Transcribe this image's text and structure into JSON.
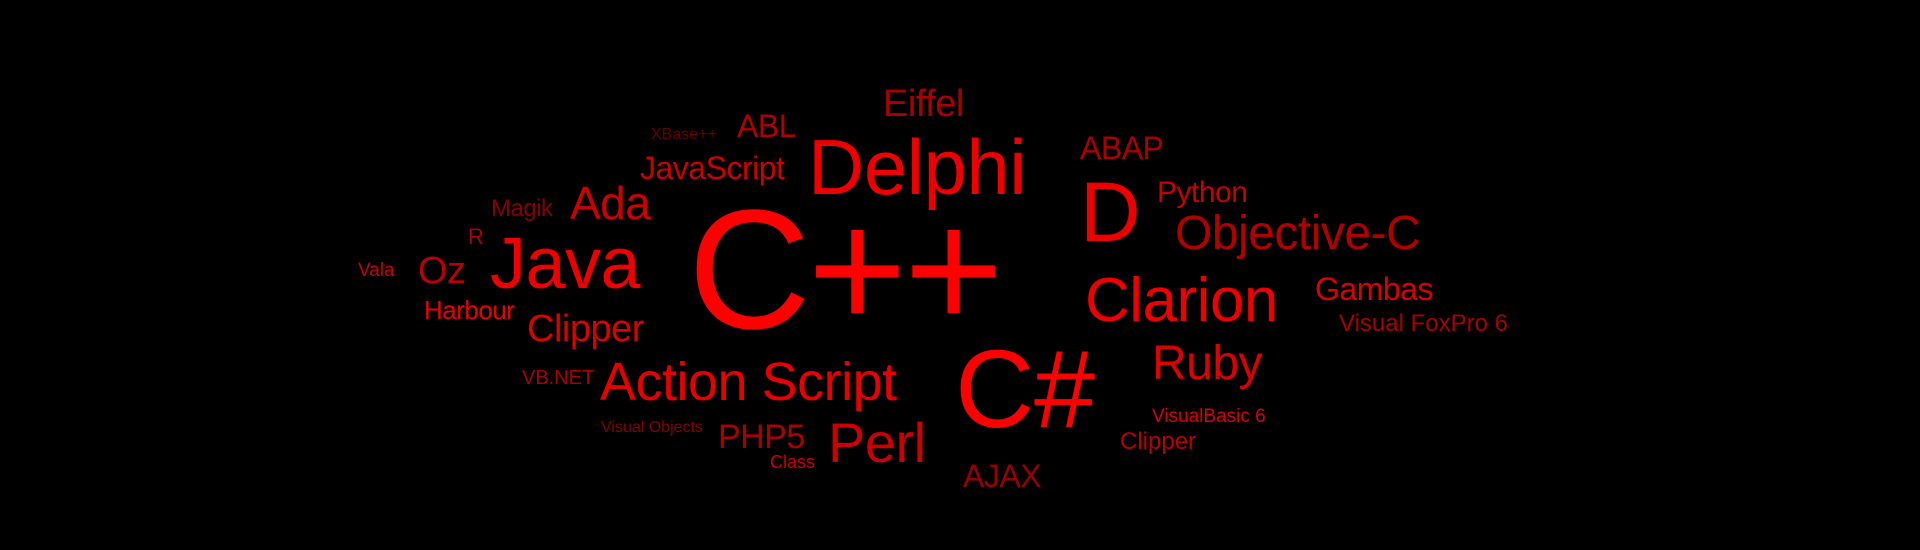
{
  "word_cloud": {
    "background": "#000000",
    "words": [
      {
        "key": "cpp",
        "text": "C++",
        "color": "#ff0000"
      },
      {
        "key": "csharp",
        "text": "C#",
        "color": "#ff0000"
      },
      {
        "key": "delphi",
        "text": "Delphi",
        "color": "#ee0000"
      },
      {
        "key": "java",
        "text": "Java",
        "color": "#ee0000"
      },
      {
        "key": "d",
        "text": "D",
        "color": "#ee0000"
      },
      {
        "key": "clarion",
        "text": "Clarion",
        "color": "#ee0000"
      },
      {
        "key": "action_script",
        "text": "Action Script",
        "color": "#e80000"
      },
      {
        "key": "perl",
        "text": "Perl",
        "color": "#cc0000"
      },
      {
        "key": "objective_c",
        "text": "Objective-C",
        "color": "#b00000"
      },
      {
        "key": "ruby",
        "text": "Ruby",
        "color": "#dd0000"
      },
      {
        "key": "ada",
        "text": "Ada",
        "color": "#cc0000"
      },
      {
        "key": "clipper_left",
        "text": "Clipper",
        "color": "#dd0000"
      },
      {
        "key": "eiffel",
        "text": "Eiffel",
        "color": "#aa0000"
      },
      {
        "key": "abl",
        "text": "ABL",
        "color": "#b00000"
      },
      {
        "key": "javascript",
        "text": "JavaScript",
        "color": "#cc0000"
      },
      {
        "key": "abap",
        "text": "ABAP",
        "color": "#aa0000"
      },
      {
        "key": "python",
        "text": "Python",
        "color": "#cc0000"
      },
      {
        "key": "oz",
        "text": "Oz",
        "color": "#bb0000"
      },
      {
        "key": "gambas",
        "text": "Gambas",
        "color": "#dd0000"
      },
      {
        "key": "harbour",
        "text": "Harbour",
        "color": "#ee0000"
      },
      {
        "key": "magik",
        "text": "Magik",
        "color": "#880000"
      },
      {
        "key": "r",
        "text": "R",
        "color": "#aa0000"
      },
      {
        "key": "vala",
        "text": "Vala",
        "color": "#cc0000"
      },
      {
        "key": "vbnet",
        "text": "VB.NET",
        "color": "#aa0000"
      },
      {
        "key": "visual_objects",
        "text": "Visual Objects",
        "color": "#880000"
      },
      {
        "key": "php5",
        "text": "PHP5",
        "color": "#aa0000"
      },
      {
        "key": "class",
        "text": "Class",
        "color": "#cc0000"
      },
      {
        "key": "ajax",
        "text": "AJAX",
        "color": "#990000"
      },
      {
        "key": "visual_foxpro",
        "text": "Visual FoxPro 6",
        "color": "#aa0000"
      },
      {
        "key": "visualbasic",
        "text": "VisualBasic 6",
        "color": "#dd0000"
      },
      {
        "key": "clipper_right",
        "text": "Clipper",
        "color": "#bb0000"
      },
      {
        "key": "xbase",
        "text": "XBase++",
        "color": "#660000"
      }
    ]
  }
}
